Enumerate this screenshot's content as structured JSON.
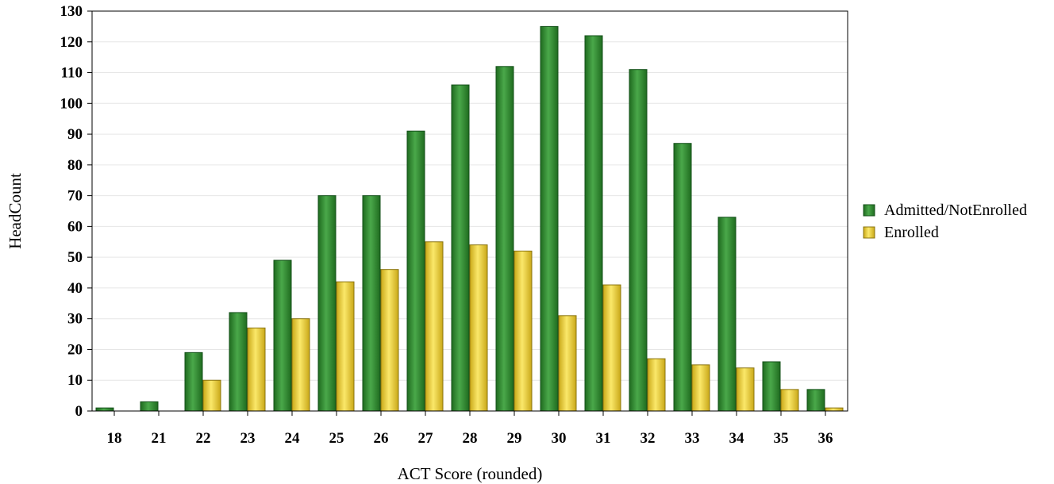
{
  "chart_data": {
    "type": "bar",
    "xlabel": "ACT Score (rounded)",
    "ylabel": "HeadCount",
    "ylim": [
      0,
      130
    ],
    "yticks": [
      0,
      10,
      20,
      30,
      40,
      50,
      60,
      70,
      80,
      90,
      100,
      110,
      120,
      130
    ],
    "grid": true,
    "legend_position": "right",
    "categories": [
      "18",
      "21",
      "22",
      "23",
      "24",
      "25",
      "26",
      "27",
      "28",
      "29",
      "30",
      "31",
      "32",
      "33",
      "34",
      "35",
      "36"
    ],
    "series": [
      {
        "name": "Admitted/NotEnrolled",
        "color": "#2e8b2e",
        "values": [
          1,
          3,
          19,
          32,
          49,
          70,
          70,
          91,
          106,
          112,
          125,
          122,
          111,
          87,
          63,
          16,
          7
        ]
      },
      {
        "name": "Enrolled",
        "color": "#f2d63a",
        "values": [
          0,
          0,
          10,
          27,
          30,
          42,
          46,
          55,
          54,
          52,
          31,
          41,
          17,
          15,
          14,
          7,
          1
        ]
      }
    ]
  }
}
